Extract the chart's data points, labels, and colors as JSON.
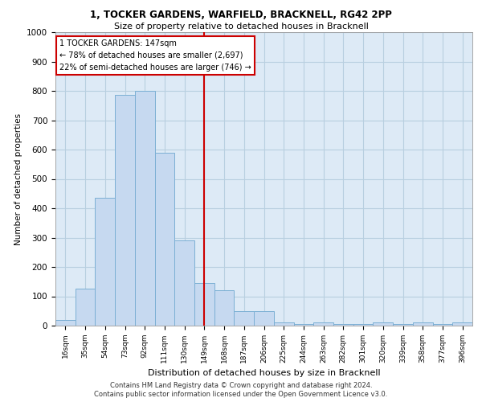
{
  "title_line1": "1, TOCKER GARDENS, WARFIELD, BRACKNELL, RG42 2PP",
  "title_line2": "Size of property relative to detached houses in Bracknell",
  "xlabel": "Distribution of detached houses by size in Bracknell",
  "ylabel": "Number of detached properties",
  "footnote1": "Contains HM Land Registry data © Crown copyright and database right 2024.",
  "footnote2": "Contains public sector information licensed under the Open Government Licence v3.0.",
  "bar_labels": [
    "16sqm",
    "35sqm",
    "54sqm",
    "73sqm",
    "92sqm",
    "111sqm",
    "130sqm",
    "149sqm",
    "168sqm",
    "187sqm",
    "206sqm",
    "225sqm",
    "244sqm",
    "263sqm",
    "282sqm",
    "301sqm",
    "320sqm",
    "339sqm",
    "358sqm",
    "377sqm",
    "396sqm"
  ],
  "bar_values": [
    20,
    125,
    435,
    785,
    800,
    590,
    290,
    145,
    120,
    50,
    50,
    10,
    5,
    10,
    5,
    5,
    10,
    5,
    10,
    5,
    10
  ],
  "bar_color": "#c6d9f0",
  "bar_edgecolor": "#7bafd4",
  "grid_color": "#b8cfe0",
  "background_color": "#ddeaf6",
  "vline_color": "#cc0000",
  "annotation_text": "1 TOCKER GARDENS: 147sqm\n← 78% of detached houses are smaller (2,697)\n22% of semi-detached houses are larger (746) →",
  "annotation_box_edgecolor": "#cc0000",
  "ylim": [
    0,
    1000
  ],
  "yticks": [
    0,
    100,
    200,
    300,
    400,
    500,
    600,
    700,
    800,
    900,
    1000
  ]
}
